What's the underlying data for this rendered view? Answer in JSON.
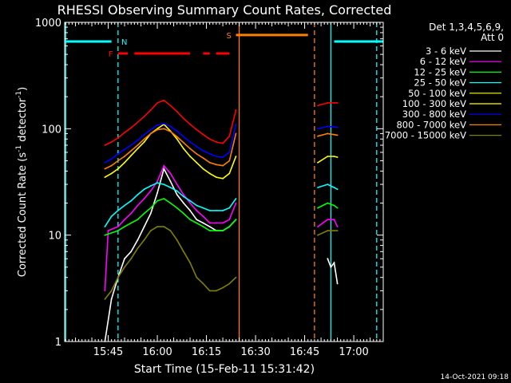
{
  "chart_data": {
    "type": "line",
    "title": "RHESSI Observing Summary Count Rates, Corrected",
    "xlabel": "Start Time (15-Feb-11 15:31:42)",
    "ylabel_main": "Corrected Count Rate (s",
    "ylabel_sup1": "-1",
    "ylabel_mid": " detector",
    "ylabel_sup2": "-1",
    "ylabel_end": ")",
    "yscale": "log",
    "ylim": [
      1,
      1000
    ],
    "yticks": [
      1,
      10,
      100,
      1000
    ],
    "ytick_labels": [
      "1",
      "10",
      "100",
      "1000"
    ],
    "xlim": [
      "15:31:42",
      "17:09:00"
    ],
    "xticks": [
      "15:45",
      "16:00",
      "16:15",
      "16:30",
      "16:45",
      "17:00"
    ],
    "legend_header": [
      "Det 1,3,4,5,6,9,",
      "Att 0"
    ],
    "legend_position": "right",
    "series": [
      {
        "name": "3 - 6 keV",
        "color": "#ffffff",
        "points": [
          [
            "15:44",
            1.0
          ],
          [
            "15:46",
            2.5
          ],
          [
            "15:48",
            4
          ],
          [
            "15:50",
            6
          ],
          [
            "15:52",
            7
          ],
          [
            "15:54",
            9
          ],
          [
            "15:56",
            12
          ],
          [
            "15:58",
            16
          ],
          [
            "16:00",
            25
          ],
          [
            "16:02",
            42
          ],
          [
            "16:04",
            32
          ],
          [
            "16:06",
            24
          ],
          [
            "16:08",
            20
          ],
          [
            "16:10",
            17
          ],
          [
            "16:12",
            14
          ],
          [
            "16:14",
            13
          ],
          [
            "16:16",
            12
          ],
          [
            "16:18",
            11
          ],
          [
            "16:20",
            11
          ],
          [
            "16:22",
            12
          ],
          [
            "16:24",
            14
          ],
          [
            "16:52",
            6
          ],
          [
            "16:53",
            5
          ],
          [
            "16:54",
            5.5
          ],
          [
            "16:55",
            3.5
          ]
        ]
      },
      {
        "name": "6 - 12 keV",
        "color": "#ff00ff",
        "points": [
          [
            "15:44",
            3
          ],
          [
            "15:45",
            11
          ],
          [
            "15:48",
            12
          ],
          [
            "15:50",
            14
          ],
          [
            "15:52",
            16
          ],
          [
            "15:54",
            19
          ],
          [
            "15:56",
            22
          ],
          [
            "15:58",
            26
          ],
          [
            "16:00",
            32
          ],
          [
            "16:02",
            45
          ],
          [
            "16:04",
            38
          ],
          [
            "16:06",
            30
          ],
          [
            "16:08",
            24
          ],
          [
            "16:10",
            20
          ],
          [
            "16:12",
            17
          ],
          [
            "16:14",
            15
          ],
          [
            "16:16",
            13
          ],
          [
            "16:18",
            13
          ],
          [
            "16:20",
            13
          ],
          [
            "16:22",
            14
          ],
          [
            "16:24",
            20
          ],
          [
            "16:49",
            12
          ],
          [
            "16:52",
            14
          ],
          [
            "16:54",
            14
          ],
          [
            "16:55",
            12
          ]
        ]
      },
      {
        "name": "12 - 25 keV",
        "color": "#00ff00",
        "points": [
          [
            "15:44",
            10
          ],
          [
            "15:48",
            11
          ],
          [
            "15:50",
            12
          ],
          [
            "15:52",
            13
          ],
          [
            "15:54",
            14
          ],
          [
            "15:56",
            16
          ],
          [
            "15:58",
            18
          ],
          [
            "16:00",
            21
          ],
          [
            "16:02",
            22
          ],
          [
            "16:04",
            20
          ],
          [
            "16:06",
            18
          ],
          [
            "16:08",
            16
          ],
          [
            "16:10",
            14
          ],
          [
            "16:12",
            13
          ],
          [
            "16:14",
            12
          ],
          [
            "16:16",
            11
          ],
          [
            "16:18",
            11
          ],
          [
            "16:20",
            11
          ],
          [
            "16:22",
            12
          ],
          [
            "16:24",
            14
          ],
          [
            "16:49",
            18
          ],
          [
            "16:52",
            20
          ],
          [
            "16:54",
            19
          ],
          [
            "16:55",
            18
          ]
        ]
      },
      {
        "name": "25 - 50 keV",
        "color": "#00ffff",
        "points": [
          [
            "15:44",
            12
          ],
          [
            "15:46",
            15
          ],
          [
            "15:48",
            17
          ],
          [
            "15:50",
            19
          ],
          [
            "15:52",
            21
          ],
          [
            "15:54",
            24
          ],
          [
            "15:56",
            27
          ],
          [
            "15:58",
            29
          ],
          [
            "16:00",
            31
          ],
          [
            "16:02",
            30
          ],
          [
            "16:04",
            28
          ],
          [
            "16:06",
            26
          ],
          [
            "16:08",
            23
          ],
          [
            "16:10",
            21
          ],
          [
            "16:12",
            19
          ],
          [
            "16:14",
            18
          ],
          [
            "16:16",
            17
          ],
          [
            "16:18",
            17
          ],
          [
            "16:20",
            17
          ],
          [
            "16:22",
            18
          ],
          [
            "16:24",
            22
          ],
          [
            "16:49",
            28
          ],
          [
            "16:52",
            30
          ],
          [
            "16:54",
            28
          ],
          [
            "16:55",
            27
          ]
        ]
      },
      {
        "name": "50 - 100 keV",
        "color": "#ffff00",
        "points": [
          [
            "15:44",
            35
          ],
          [
            "15:46",
            38
          ],
          [
            "15:48",
            42
          ],
          [
            "15:50",
            48
          ],
          [
            "15:52",
            56
          ],
          [
            "15:54",
            65
          ],
          [
            "15:56",
            75
          ],
          [
            "15:58",
            90
          ],
          [
            "16:00",
            100
          ],
          [
            "16:02",
            110
          ],
          [
            "16:04",
            95
          ],
          [
            "16:06",
            80
          ],
          [
            "16:08",
            65
          ],
          [
            "16:10",
            55
          ],
          [
            "16:12",
            48
          ],
          [
            "16:14",
            42
          ],
          [
            "16:16",
            38
          ],
          [
            "16:18",
            35
          ],
          [
            "16:20",
            34
          ],
          [
            "16:22",
            38
          ],
          [
            "16:24",
            55
          ],
          [
            "16:49",
            48
          ],
          [
            "16:52",
            55
          ],
          [
            "16:54",
            55
          ],
          [
            "16:55",
            54
          ]
        ]
      },
      {
        "name": "100 - 300 keV",
        "color": "#ffff00",
        "points": []
      },
      {
        "name": "300 - 800 keV",
        "color": "#0000ff",
        "points": [
          [
            "15:44",
            48
          ],
          [
            "15:46",
            52
          ],
          [
            "15:48",
            58
          ],
          [
            "15:50",
            64
          ],
          [
            "15:52",
            70
          ],
          [
            "15:54",
            78
          ],
          [
            "15:56",
            88
          ],
          [
            "15:58",
            98
          ],
          [
            "16:00",
            108
          ],
          [
            "16:02",
            112
          ],
          [
            "16:04",
            105
          ],
          [
            "16:06",
            95
          ],
          [
            "16:08",
            84
          ],
          [
            "16:10",
            75
          ],
          [
            "16:12",
            68
          ],
          [
            "16:14",
            62
          ],
          [
            "16:16",
            58
          ],
          [
            "16:18",
            55
          ],
          [
            "16:20",
            54
          ],
          [
            "16:22",
            60
          ],
          [
            "16:24",
            110
          ],
          [
            "16:49",
            100
          ],
          [
            "16:52",
            105
          ],
          [
            "16:54",
            104
          ],
          [
            "16:55",
            103
          ]
        ]
      },
      {
        "name": "800 - 7000 keV",
        "color": "#ff8000",
        "points": [
          [
            "15:44",
            42
          ],
          [
            "15:46",
            45
          ],
          [
            "15:48",
            50
          ],
          [
            "15:50",
            55
          ],
          [
            "15:52",
            62
          ],
          [
            "15:54",
            70
          ],
          [
            "15:56",
            80
          ],
          [
            "15:58",
            90
          ],
          [
            "16:00",
            98
          ],
          [
            "16:02",
            100
          ],
          [
            "16:04",
            94
          ],
          [
            "16:06",
            84
          ],
          [
            "16:08",
            74
          ],
          [
            "16:10",
            65
          ],
          [
            "16:12",
            58
          ],
          [
            "16:14",
            53
          ],
          [
            "16:16",
            48
          ],
          [
            "16:18",
            46
          ],
          [
            "16:20",
            45
          ],
          [
            "16:22",
            50
          ],
          [
            "16:24",
            90
          ],
          [
            "16:49",
            85
          ],
          [
            "16:52",
            90
          ],
          [
            "16:54",
            88
          ],
          [
            "16:55",
            87
          ]
        ]
      },
      {
        "name": "7000 - 15000 keV",
        "color": "#808000",
        "points": [
          [
            "15:44",
            2.5
          ],
          [
            "15:46",
            3
          ],
          [
            "15:48",
            4
          ],
          [
            "15:50",
            5
          ],
          [
            "15:52",
            6
          ],
          [
            "15:54",
            7.5
          ],
          [
            "15:56",
            9
          ],
          [
            "15:58",
            11
          ],
          [
            "16:00",
            12
          ],
          [
            "16:02",
            12
          ],
          [
            "16:04",
            11
          ],
          [
            "16:06",
            9
          ],
          [
            "16:08",
            7
          ],
          [
            "16:10",
            5.5
          ],
          [
            "16:12",
            4
          ],
          [
            "16:14",
            3.5
          ],
          [
            "16:16",
            3
          ],
          [
            "16:18",
            3
          ],
          [
            "16:20",
            3.2
          ],
          [
            "16:22",
            3.5
          ],
          [
            "16:24",
            4
          ],
          [
            "16:49",
            10
          ],
          [
            "16:52",
            11
          ],
          [
            "16:54",
            11
          ],
          [
            "16:55",
            11
          ]
        ]
      }
    ],
    "red_series_color": "#ff0000",
    "red_series_points": [
      [
        "15:44",
        70
      ],
      [
        "15:46",
        75
      ],
      [
        "15:48",
        82
      ],
      [
        "15:50",
        92
      ],
      [
        "15:52",
        102
      ],
      [
        "15:54",
        115
      ],
      [
        "15:56",
        130
      ],
      [
        "15:58",
        150
      ],
      [
        "16:00",
        175
      ],
      [
        "16:02",
        185
      ],
      [
        "16:04",
        165
      ],
      [
        "16:06",
        145
      ],
      [
        "16:08",
        125
      ],
      [
        "16:10",
        110
      ],
      [
        "16:12",
        98
      ],
      [
        "16:14",
        88
      ],
      [
        "16:16",
        80
      ],
      [
        "16:18",
        75
      ],
      [
        "16:20",
        73
      ],
      [
        "16:22",
        85
      ],
      [
        "16:24",
        150
      ],
      [
        "16:49",
        165
      ],
      [
        "16:52",
        175
      ],
      [
        "16:54",
        175
      ],
      [
        "16:55",
        175
      ]
    ],
    "flag_bars": [
      {
        "label": "N",
        "color": "#00ffff",
        "y": 660,
        "spans": [
          [
            "15:31:42",
            "15:46"
          ],
          [
            "16:54",
            "17:09"
          ]
        ]
      },
      {
        "label": "F",
        "color": "#ff0000",
        "y": 510,
        "spans": [
          [
            "15:48",
            "15:51"
          ],
          [
            "15:53",
            "16:10"
          ],
          [
            "16:14",
            "16:16"
          ],
          [
            "16:18",
            "16:22"
          ]
        ]
      },
      {
        "label": "S",
        "color": "#ff8000",
        "y": 760,
        "spans": [
          [
            "16:24",
            "16:46"
          ]
        ]
      }
    ],
    "vertical_lines": [
      {
        "time": "15:32",
        "color": "#00ffff",
        "style": "solid"
      },
      {
        "time": "15:48",
        "color": "#00ffff",
        "style": "dashed"
      },
      {
        "time": "16:25",
        "color": "#ff8000",
        "style": "solid"
      },
      {
        "time": "16:48",
        "color": "#ff8000",
        "style": "dashed"
      },
      {
        "time": "16:53",
        "color": "#00ffff",
        "style": "solid"
      },
      {
        "time": "17:07",
        "color": "#00ffff",
        "style": "dashed"
      }
    ]
  },
  "footer_timestamp": "14-Oct-2021 09:18"
}
